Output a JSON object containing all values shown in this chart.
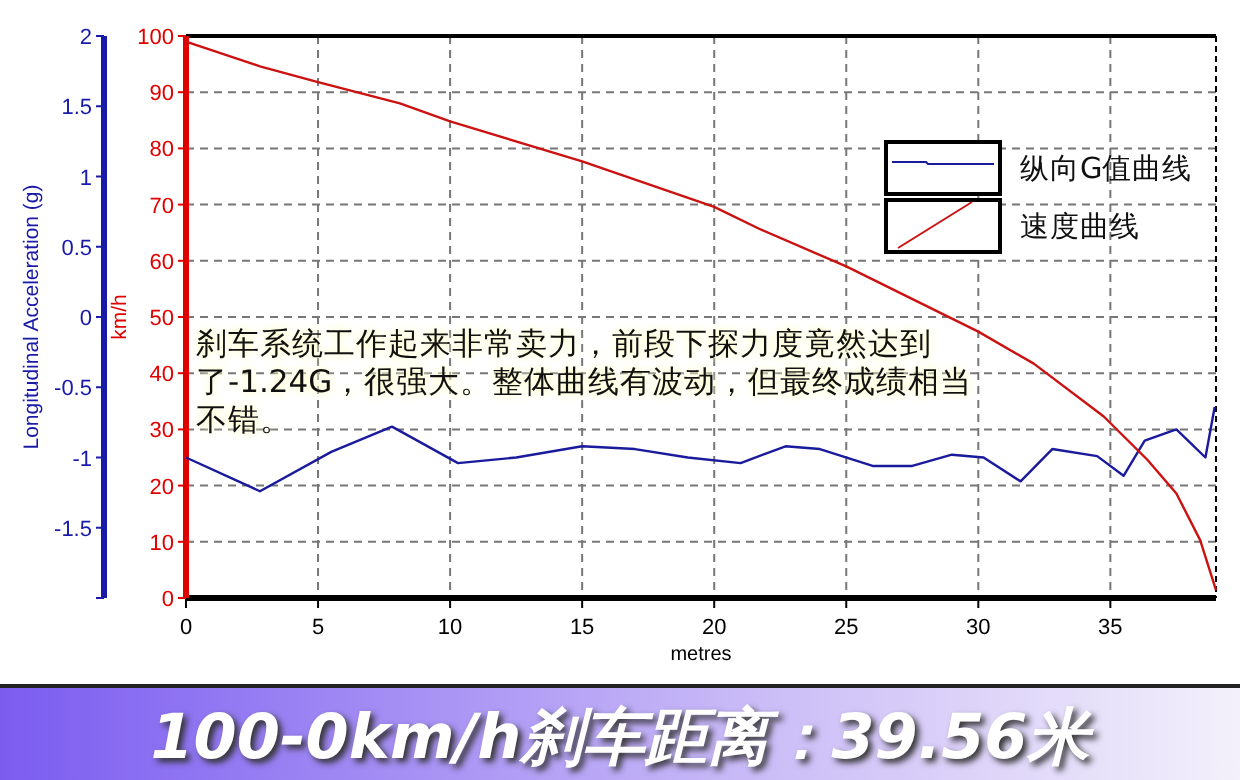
{
  "chart_data": {
    "type": "line",
    "title": "100-0km/h刹车距离：39.56米",
    "xlabel": "metres",
    "ylabel": "Longitudinal Acceleration (g)",
    "y2label": "km/h",
    "annotations": [
      "刹车系统工作起来非常卖力，前段下探力度竟然达到了-1.24G，很强大。整体曲线有波动，但最终成绩相当不错。"
    ],
    "xlim": [
      0,
      39
    ],
    "xticks": [
      0,
      5,
      10,
      15,
      20,
      25,
      30,
      35
    ],
    "ylim": [
      -2,
      2
    ],
    "yticks": [
      {
        "value": -2,
        "label": null
      },
      -1.5,
      -1,
      -0.5,
      0,
      0.5,
      1,
      1.5,
      2
    ],
    "y2lim": [
      0,
      100
    ],
    "y2ticks": [
      0,
      10,
      20,
      30,
      40,
      50,
      60,
      70,
      80,
      90,
      100
    ],
    "grid": true,
    "legend": "top right",
    "marker": "none",
    "line_style": "solid",
    "series": [
      {
        "name": "纵向G值曲线",
        "color": "#1a1a9c",
        "axis": "y",
        "x": [
          0,
          2.8,
          5.5,
          7.8,
          10.3,
          12.5,
          15,
          17,
          19,
          21,
          22.7,
          24,
          26,
          27.5,
          29,
          30.2,
          31.6,
          32.8,
          34.5,
          35.5,
          36.3,
          37.5,
          38,
          38.6,
          38.95
        ],
        "values": [
          -1.0,
          -1.24,
          -0.96,
          -0.78,
          -1.04,
          -1.0,
          -0.92,
          -0.94,
          -1.0,
          -1.04,
          -0.92,
          -0.94,
          -1.06,
          -1.06,
          -0.98,
          -1.0,
          -1.17,
          -0.94,
          -0.99,
          -1.13,
          -0.88,
          -0.8,
          -0.89,
          -1.0,
          -0.64
        ]
      },
      {
        "name": "速度曲线",
        "color": "#cc1111",
        "axis": "y2",
        "x": [
          0,
          2.8,
          5,
          8.1,
          10,
          15,
          20,
          21.7,
          25,
          30,
          32.1,
          34.75,
          36.4,
          37.5,
          38.4,
          39
        ],
        "values": [
          99,
          94.6,
          91.8,
          88,
          84.8,
          77.7,
          69.6,
          65.7,
          59,
          47.4,
          41.7,
          32.3,
          24.6,
          18.6,
          10.3,
          1.4
        ]
      }
    ]
  }
}
